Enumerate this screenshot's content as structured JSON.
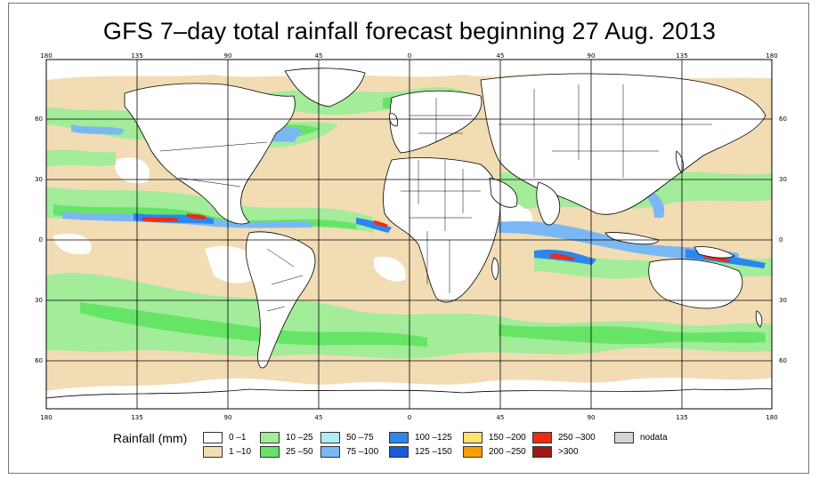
{
  "title": "GFS 7–day total rainfall forecast beginning 27 Aug. 2013",
  "axes": {
    "lon_top": [
      "180",
      "135",
      "90",
      "45",
      "0",
      "45",
      "90",
      "135",
      "180"
    ],
    "lon_bottom": [
      "180",
      "135",
      "90",
      "45",
      "0",
      "45",
      "90",
      "135",
      "180"
    ],
    "lat_left": [
      "60",
      "30",
      "0",
      "30",
      "60"
    ],
    "lat_right": [
      "60",
      "30",
      "0",
      "30",
      "60"
    ]
  },
  "legend": {
    "title": "Rainfall (mm)",
    "items": [
      {
        "label": "0 –1",
        "color": "#ffffff"
      },
      {
        "label": "1 –10",
        "color": "#f2dcb4"
      },
      {
        "label": "10 –25",
        "color": "#a2ec9a"
      },
      {
        "label": "25 –50",
        "color": "#66e466"
      },
      {
        "label": "50 –75",
        "color": "#b2ecf8"
      },
      {
        "label": "75 –100",
        "color": "#7ab8f4"
      },
      {
        "label": "100 –125",
        "color": "#2c86ee"
      },
      {
        "label": "125 –150",
        "color": "#1a5ad4"
      },
      {
        "label": "150 –200",
        "color": "#ffe070"
      },
      {
        "label": "200 –250",
        "color": "#f8a000"
      },
      {
        "label": "250 –300",
        "color": "#ee2c10"
      },
      {
        "label": ">300",
        "color": "#a01818"
      },
      {
        "label": "nodata",
        "color": "#d4d4d4"
      }
    ]
  },
  "colors": {
    "ocean_light": "#f2dcb4",
    "green_light": "#a2ec9a",
    "green": "#66e466",
    "blue_light": "#7ab8f4",
    "blue": "#2c86ee",
    "red": "#ee2c10",
    "land": "#ffffff",
    "border": "#000000"
  }
}
